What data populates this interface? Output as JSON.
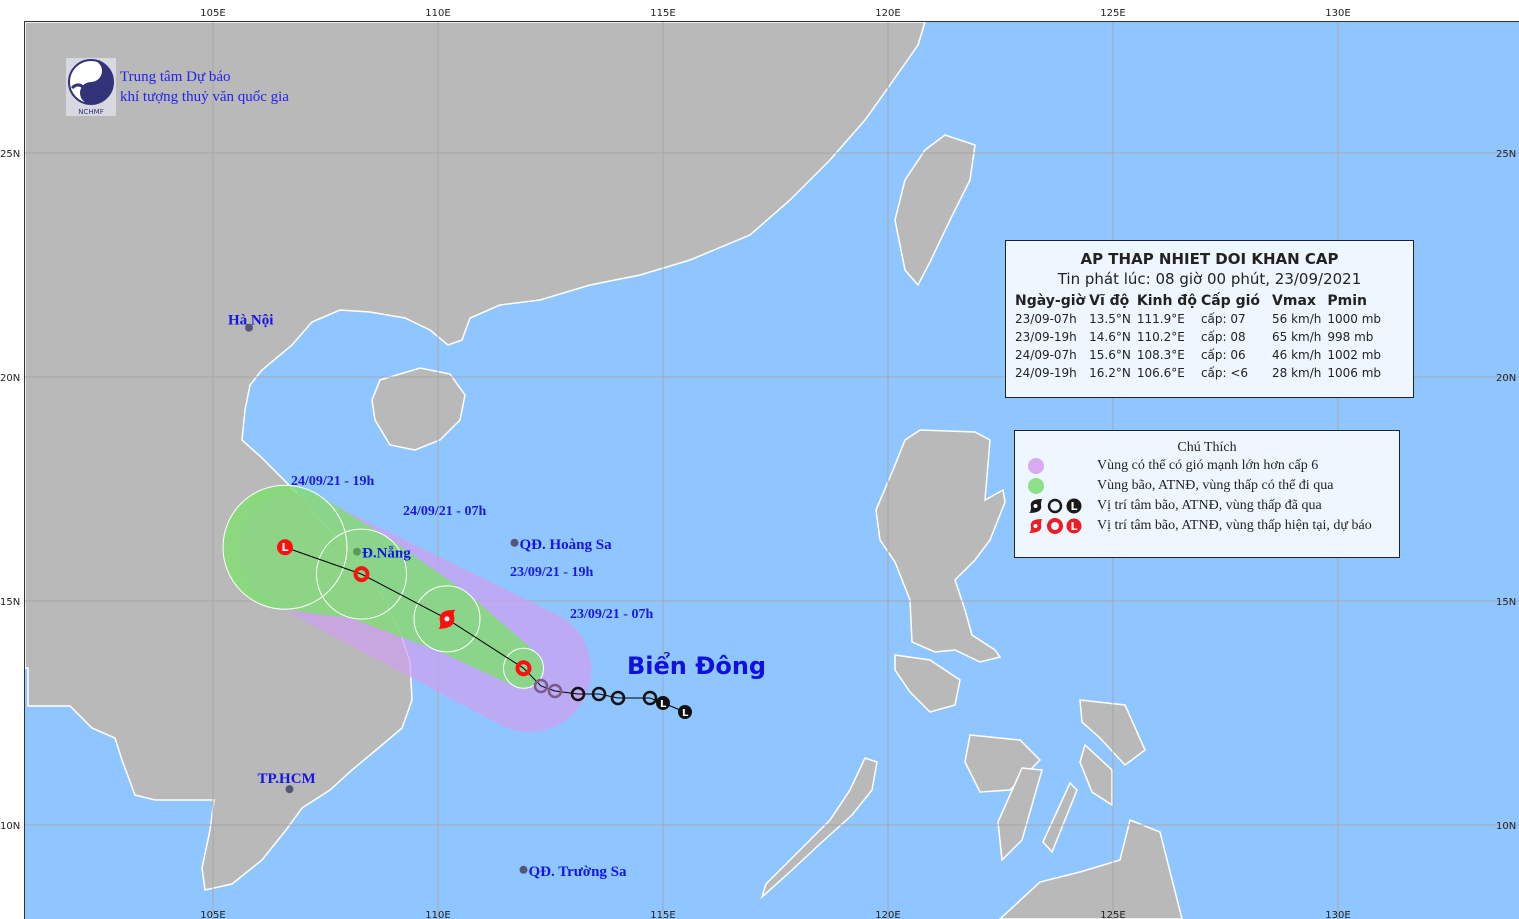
{
  "axes": {
    "lon_labels": [
      "105E",
      "110E",
      "115E",
      "120E",
      "125E",
      "130E"
    ],
    "lon_values": [
      105,
      110,
      115,
      120,
      125,
      130
    ],
    "lat_labels": [
      "25N",
      "20N",
      "15N",
      "10N"
    ],
    "lat_values": [
      25,
      20,
      15,
      10
    ]
  },
  "colors": {
    "sea": "#90c6ff",
    "land": "#b9b9b9",
    "cone_purple": "#cfa6f2",
    "cone_green": "#7fe07f",
    "forecast_red": "#ff1010",
    "past_black": "#111111",
    "label_blue": "#1a1ad8"
  },
  "logo": {
    "line1": "Trung tâm Dự báo",
    "line2": "khí tượng thuỷ văn quốc gia",
    "mark": "NCHMF"
  },
  "cities": [
    {
      "name": "Hà Nội",
      "lat": 21.1,
      "lon": 105.8
    },
    {
      "name": "Đ.Nẵng",
      "lat": 16.1,
      "lon": 108.2
    },
    {
      "name": "QĐ. Hoàng Sa",
      "lat": 16.3,
      "lon": 111.7
    },
    {
      "name": "TP.HCM",
      "lat": 10.8,
      "lon": 106.7
    },
    {
      "name": "QĐ. Trường Sa",
      "lat": 9.0,
      "lon": 111.9
    }
  ],
  "sea_label": "Biển Đông",
  "forecast_labels": [
    "24/09/21 - 19h",
    "24/09/21 - 07h",
    "23/09/21 - 19h",
    "23/09/21 - 07h"
  ],
  "info": {
    "title": "AP THAP NHIET DOI KHAN CAP",
    "issued": "Tin phát lúc: 08 giờ 00 phút, 23/09/2021",
    "headers": [
      "Ngày-giờ",
      "Vĩ độ",
      "Kinh độ",
      "Cấp gió",
      "Vmax",
      "Pmin"
    ],
    "rows": [
      [
        "23/09-07h",
        "13.5°N",
        "111.9°E",
        "cấp: 07",
        "56 km/h",
        "1000 mb"
      ],
      [
        "23/09-19h",
        "14.6°N",
        "110.2°E",
        "cấp: 08",
        "65 km/h",
        "998 mb"
      ],
      [
        "24/09-07h",
        "15.6°N",
        "108.3°E",
        "cấp: 06",
        "46 km/h",
        "1002 mb"
      ],
      [
        "24/09-19h",
        "16.2°N",
        "106.6°E",
        "cấp: <6",
        "28 km/h",
        "1006 mb"
      ]
    ]
  },
  "legend": {
    "title": "Chú Thích",
    "items": [
      {
        "icon": "purple-circle",
        "label": "Vùng có thể có gió mạnh lớn hơn cấp 6"
      },
      {
        "icon": "green-circle",
        "label": "Vùng bão, ATNĐ, vùng thấp có thể đi qua"
      },
      {
        "icon": "black-storm-circle-low",
        "label": "Vị trí tâm bão, ATNĐ, vùng thấp đã qua"
      },
      {
        "icon": "red-storm-circle-low",
        "label": "Vị trí tâm bão, ATNĐ, vùng thấp hiện tại, dự báo"
      }
    ]
  }
}
